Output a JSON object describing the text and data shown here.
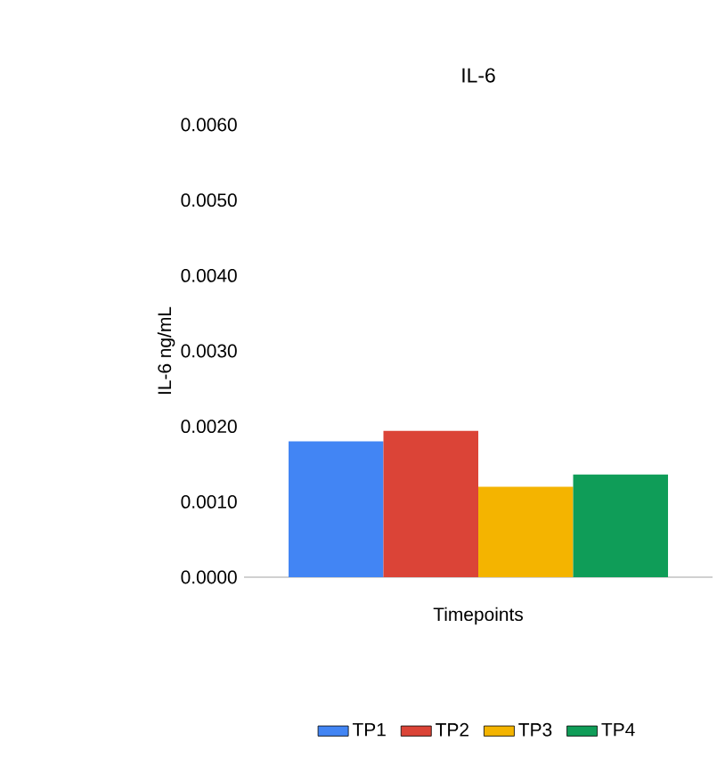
{
  "chart_data": {
    "type": "bar",
    "title": "IL-6",
    "xlabel": "Timepoints",
    "ylabel": "IL-6 ng/mL",
    "categories": [
      null
    ],
    "series": [
      {
        "name": "TP1",
        "color": "#4285f4",
        "values": [
          0.0018
        ]
      },
      {
        "name": "TP2",
        "color": "#db4437",
        "values": [
          0.00194
        ]
      },
      {
        "name": "TP3",
        "color": "#f4b400",
        "values": [
          0.0012
        ]
      },
      {
        "name": "TP4",
        "color": "#0f9d58",
        "values": [
          0.00136
        ]
      }
    ],
    "ylim": [
      0,
      0.006
    ],
    "yticks": [
      {
        "value": 0,
        "label": "0.0000"
      },
      {
        "value": 0.001,
        "label": "0.0010"
      },
      {
        "value": 0.002,
        "label": "0.0020"
      },
      {
        "value": 0.003,
        "label": "0.0030"
      },
      {
        "value": 0.004,
        "label": "0.0040"
      },
      {
        "value": 0.005,
        "label": "0.0050"
      },
      {
        "value": 0.006,
        "label": "0.0060"
      }
    ],
    "grid": false,
    "legend": "bottom"
  }
}
